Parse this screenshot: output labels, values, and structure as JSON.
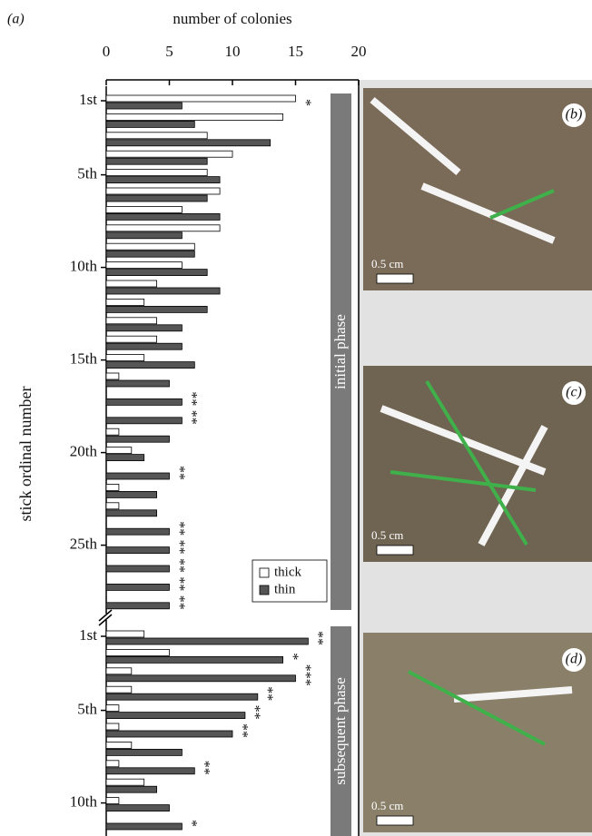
{
  "figure_label": "(a)",
  "chart_data": [
    {
      "type": "bar",
      "orientation": "horizontal",
      "title": "number of colonies",
      "y_label": "stick ordinal number",
      "panel_label": "initial phase",
      "xlim": [
        0,
        20
      ],
      "xticks": [
        0,
        5,
        10,
        15,
        20
      ],
      "legend": "lower right",
      "categories": [
        "1st",
        null,
        null,
        null,
        "5th",
        null,
        null,
        null,
        null,
        "10th",
        null,
        null,
        null,
        null,
        "15th",
        null,
        null,
        null,
        null,
        "20th",
        null,
        null,
        null,
        null,
        "25th",
        null,
        null,
        null
      ],
      "series": [
        {
          "name": "thick",
          "color": "#ffffff",
          "values": [
            15,
            14,
            8,
            10,
            8,
            9,
            6,
            9,
            7,
            6,
            4,
            3,
            4,
            4,
            3,
            1,
            0,
            0,
            1,
            2,
            0,
            1,
            1,
            0,
            0,
            0,
            0,
            0
          ]
        },
        {
          "name": "thin",
          "color": "#555555",
          "values": [
            6,
            7,
            13,
            8,
            9,
            8,
            9,
            6,
            7,
            8,
            9,
            8,
            6,
            6,
            7,
            5,
            6,
            6,
            5,
            3,
            5,
            4,
            4,
            5,
            5,
            5,
            5,
            5
          ]
        }
      ],
      "annotations": [
        "*",
        null,
        null,
        null,
        null,
        null,
        null,
        null,
        null,
        null,
        null,
        null,
        null,
        null,
        null,
        null,
        "**",
        "**",
        null,
        null,
        "**",
        null,
        null,
        "**",
        "**",
        "**",
        "**",
        "**"
      ]
    },
    {
      "type": "bar",
      "orientation": "horizontal",
      "panel_label": "subsequent phase",
      "categories": [
        "1st",
        null,
        null,
        null,
        "5th",
        null,
        null,
        null,
        null,
        "10th",
        null
      ],
      "series": [
        {
          "name": "thick",
          "color": "#ffffff",
          "values": [
            3,
            5,
            2,
            2,
            1,
            1,
            2,
            1,
            3,
            1,
            0
          ]
        },
        {
          "name": "thin",
          "color": "#555555",
          "values": [
            16,
            14,
            15,
            12,
            11,
            10,
            6,
            7,
            4,
            5,
            6
          ]
        }
      ],
      "annotations": [
        "**",
        "*",
        "***",
        "**",
        "**",
        "**",
        null,
        "**",
        null,
        null,
        "*"
      ]
    }
  ],
  "photos": [
    {
      "label": "(b)",
      "scale": "0.5 cm"
    },
    {
      "label": "(c)",
      "scale": "0.5 cm"
    },
    {
      "label": "(d)",
      "scale": "0.5 cm"
    }
  ]
}
